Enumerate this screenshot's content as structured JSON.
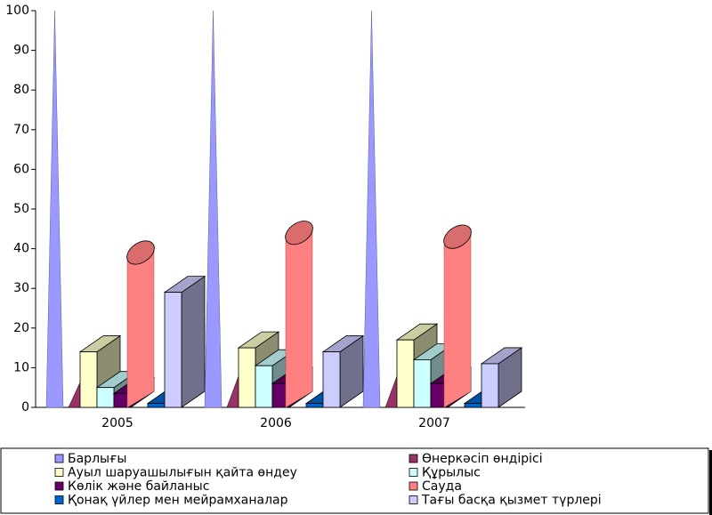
{
  "chart_data": {
    "type": "bar3d",
    "categories": [
      "2005",
      "2006",
      "2007"
    ],
    "ylim": [
      0,
      100
    ],
    "yticks": [
      0,
      10,
      20,
      30,
      40,
      50,
      60,
      70,
      80,
      90,
      100
    ],
    "series": [
      {
        "name": "Барлығы",
        "color": "#9999ff",
        "shape": "cone",
        "values": [
          100,
          100,
          100
        ]
      },
      {
        "name": "Өнеркәсіп өндірісі",
        "color": "#993366",
        "shape": "pyramid",
        "values": [
          8,
          10,
          10
        ]
      },
      {
        "name": "Ауыл шаруашылығын қайта өндеу",
        "color": "#ffffcc",
        "shape": "box",
        "values": [
          14,
          15,
          17
        ]
      },
      {
        "name": "Құрылыс",
        "color": "#ccffff",
        "shape": "box",
        "values": [
          5,
          10.5,
          12
        ]
      },
      {
        "name": "Көлік және байланыс",
        "color": "#660066",
        "shape": "box",
        "values": [
          3.5,
          6,
          6
        ]
      },
      {
        "name": "Сауда",
        "color": "#ff8080",
        "shape": "cylinder",
        "values": [
          37,
          42,
          41
        ]
      },
      {
        "name": "Қонақ үйлер мен мейрамханалар",
        "color": "#0066cc",
        "shape": "box",
        "values": [
          1,
          1,
          1
        ]
      },
      {
        "name": "Тағы басқа қызмет түрлері",
        "color": "#ccccff",
        "shape": "box",
        "values": [
          29,
          14,
          11
        ]
      }
    ]
  }
}
